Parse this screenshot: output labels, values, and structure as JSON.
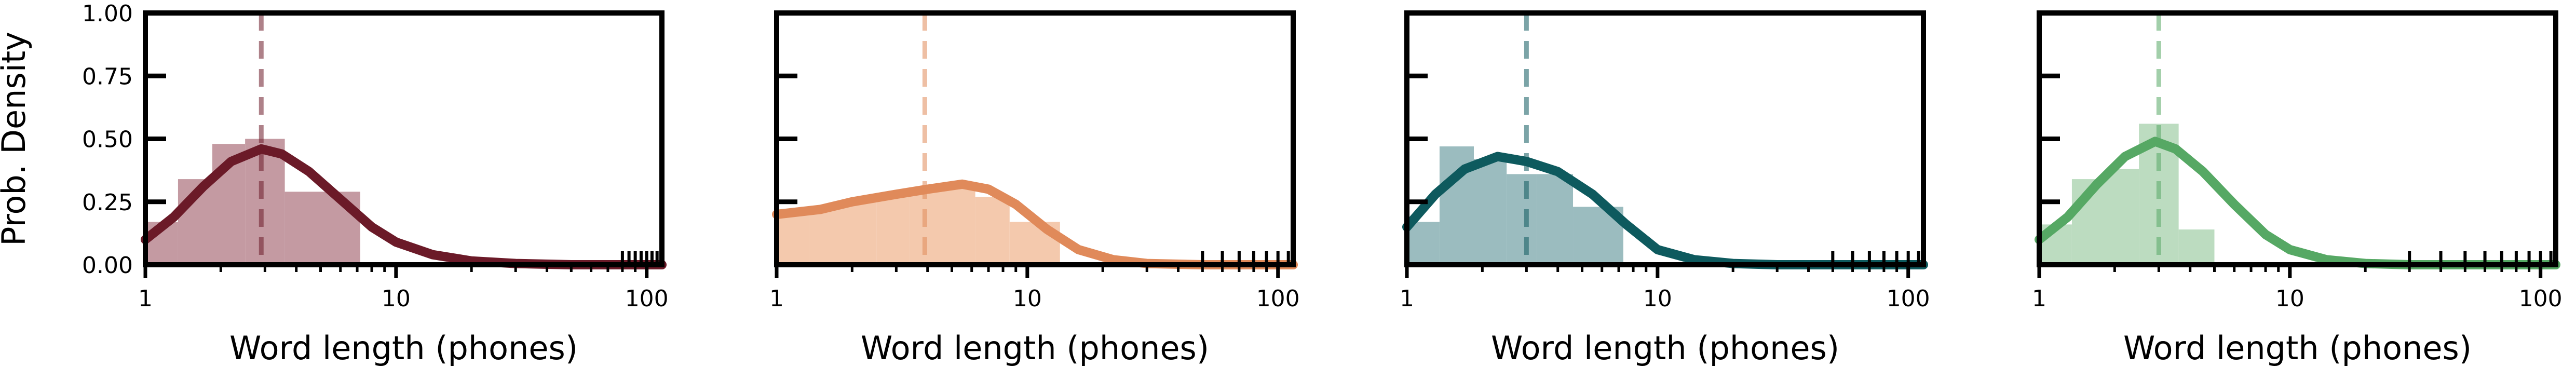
{
  "figure": {
    "shared_ylabel": "Prob. Density",
    "y_tick_labels": [
      "0.00",
      "0.25",
      "0.50",
      "0.75",
      "1.00"
    ],
    "x_tick_labels": [
      "1",
      "10",
      "100"
    ]
  },
  "chart_data": [
    {
      "type": "histogram+kde",
      "xlabel": "Word length (phones)",
      "ylabel": "Prob. Density",
      "x_scale": "log",
      "xlim": [
        1,
        115
      ],
      "ylim": [
        0,
        1.0
      ],
      "color": "#6b1a28",
      "bar_color": "#c49aa2",
      "median": 2.9,
      "bins": [
        {
          "x0": 1.0,
          "x1": 1.35,
          "y": 0.17
        },
        {
          "x0": 1.35,
          "x1": 1.85,
          "y": 0.34
        },
        {
          "x0": 1.85,
          "x1": 2.5,
          "y": 0.48
        },
        {
          "x0": 2.5,
          "x1": 3.6,
          "y": 0.5
        },
        {
          "x0": 3.6,
          "x1": 7.2,
          "y": 0.29
        },
        {
          "x0": 7.2,
          "x1": 115,
          "y": 0.0
        }
      ],
      "kde": [
        [
          1,
          0.1
        ],
        [
          1.3,
          0.19
        ],
        [
          1.7,
          0.31
        ],
        [
          2.2,
          0.41
        ],
        [
          2.9,
          0.46
        ],
        [
          3.5,
          0.44
        ],
        [
          4.5,
          0.37
        ],
        [
          6,
          0.26
        ],
        [
          8,
          0.15
        ],
        [
          10,
          0.09
        ],
        [
          14,
          0.04
        ],
        [
          20,
          0.015
        ],
        [
          30,
          0.005
        ],
        [
          50,
          0.0
        ],
        [
          115,
          0.0
        ]
      ],
      "rug": [
        80,
        85,
        90,
        95,
        100,
        105,
        110
      ]
    },
    {
      "type": "histogram+kde",
      "xlabel": "Word length (phones)",
      "ylabel": "",
      "x_scale": "log",
      "xlim": [
        1,
        115
      ],
      "ylim": [
        0,
        1.0
      ],
      "color": "#e08a5a",
      "bar_color": "#f4c9ad",
      "median": 3.9,
      "bins": [
        {
          "x0": 1.0,
          "x1": 1.35,
          "y": 0.2
        },
        {
          "x0": 1.35,
          "x1": 1.85,
          "y": 0.23
        },
        {
          "x0": 1.85,
          "x1": 2.5,
          "y": 0.25
        },
        {
          "x0": 2.5,
          "x1": 3.4,
          "y": 0.27
        },
        {
          "x0": 3.4,
          "x1": 4.6,
          "y": 0.29
        },
        {
          "x0": 4.6,
          "x1": 6.2,
          "y": 0.31
        },
        {
          "x0": 6.2,
          "x1": 8.5,
          "y": 0.27
        },
        {
          "x0": 8.5,
          "x1": 13.5,
          "y": 0.17
        }
      ],
      "kde": [
        [
          1,
          0.2
        ],
        [
          1.5,
          0.22
        ],
        [
          2,
          0.25
        ],
        [
          3,
          0.28
        ],
        [
          4,
          0.3
        ],
        [
          5.5,
          0.32
        ],
        [
          7,
          0.3
        ],
        [
          9,
          0.24
        ],
        [
          12,
          0.14
        ],
        [
          16,
          0.06
        ],
        [
          22,
          0.02
        ],
        [
          30,
          0.005
        ],
        [
          50,
          0.0
        ],
        [
          115,
          0.0
        ]
      ],
      "rug": [
        50,
        60,
        70,
        80,
        90,
        100,
        110
      ]
    },
    {
      "type": "histogram+kde",
      "xlabel": "Word length (phones)",
      "ylabel": "",
      "x_scale": "log",
      "xlim": [
        1,
        115
      ],
      "ylim": [
        0,
        1.0
      ],
      "color": "#0e5a5e",
      "bar_color": "#9bbcbf",
      "median": 3.0,
      "bins": [
        {
          "x0": 1.0,
          "x1": 1.35,
          "y": 0.17
        },
        {
          "x0": 1.35,
          "x1": 1.85,
          "y": 0.47
        },
        {
          "x0": 1.85,
          "x1": 2.5,
          "y": 0.42
        },
        {
          "x0": 2.5,
          "x1": 3.3,
          "y": 0.36
        },
        {
          "x0": 3.3,
          "x1": 4.6,
          "y": 0.36
        },
        {
          "x0": 4.6,
          "x1": 7.3,
          "y": 0.23
        }
      ],
      "kde": [
        [
          1,
          0.15
        ],
        [
          1.3,
          0.28
        ],
        [
          1.7,
          0.38
        ],
        [
          2.3,
          0.43
        ],
        [
          3,
          0.41
        ],
        [
          4,
          0.37
        ],
        [
          5.5,
          0.28
        ],
        [
          7.5,
          0.16
        ],
        [
          10,
          0.06
        ],
        [
          14,
          0.02
        ],
        [
          20,
          0.005
        ],
        [
          30,
          0.0
        ],
        [
          115,
          0.0
        ]
      ],
      "rug": [
        50,
        60,
        70,
        80,
        90,
        100,
        110
      ]
    },
    {
      "type": "histogram+kde",
      "xlabel": "Word length (phones)",
      "ylabel": "",
      "x_scale": "log",
      "xlim": [
        1,
        115
      ],
      "ylim": [
        0,
        1.0
      ],
      "color": "#56a864",
      "bar_color": "#bcdcc0",
      "median": 3.0,
      "bins": [
        {
          "x0": 1.0,
          "x1": 1.35,
          "y": 0.16
        },
        {
          "x0": 1.35,
          "x1": 1.85,
          "y": 0.34
        },
        {
          "x0": 1.85,
          "x1": 2.5,
          "y": 0.38
        },
        {
          "x0": 2.5,
          "x1": 3.6,
          "y": 0.56
        },
        {
          "x0": 3.6,
          "x1": 5.0,
          "y": 0.14
        }
      ],
      "kde": [
        [
          1,
          0.1
        ],
        [
          1.3,
          0.19
        ],
        [
          1.7,
          0.32
        ],
        [
          2.2,
          0.43
        ],
        [
          2.9,
          0.49
        ],
        [
          3.5,
          0.46
        ],
        [
          4.5,
          0.37
        ],
        [
          6,
          0.24
        ],
        [
          8,
          0.12
        ],
        [
          10,
          0.06
        ],
        [
          14,
          0.02
        ],
        [
          20,
          0.005
        ],
        [
          30,
          0.0
        ],
        [
          115,
          0.0
        ]
      ],
      "rug": [
        30,
        40,
        50,
        60,
        70,
        80,
        90,
        100,
        110
      ]
    }
  ]
}
